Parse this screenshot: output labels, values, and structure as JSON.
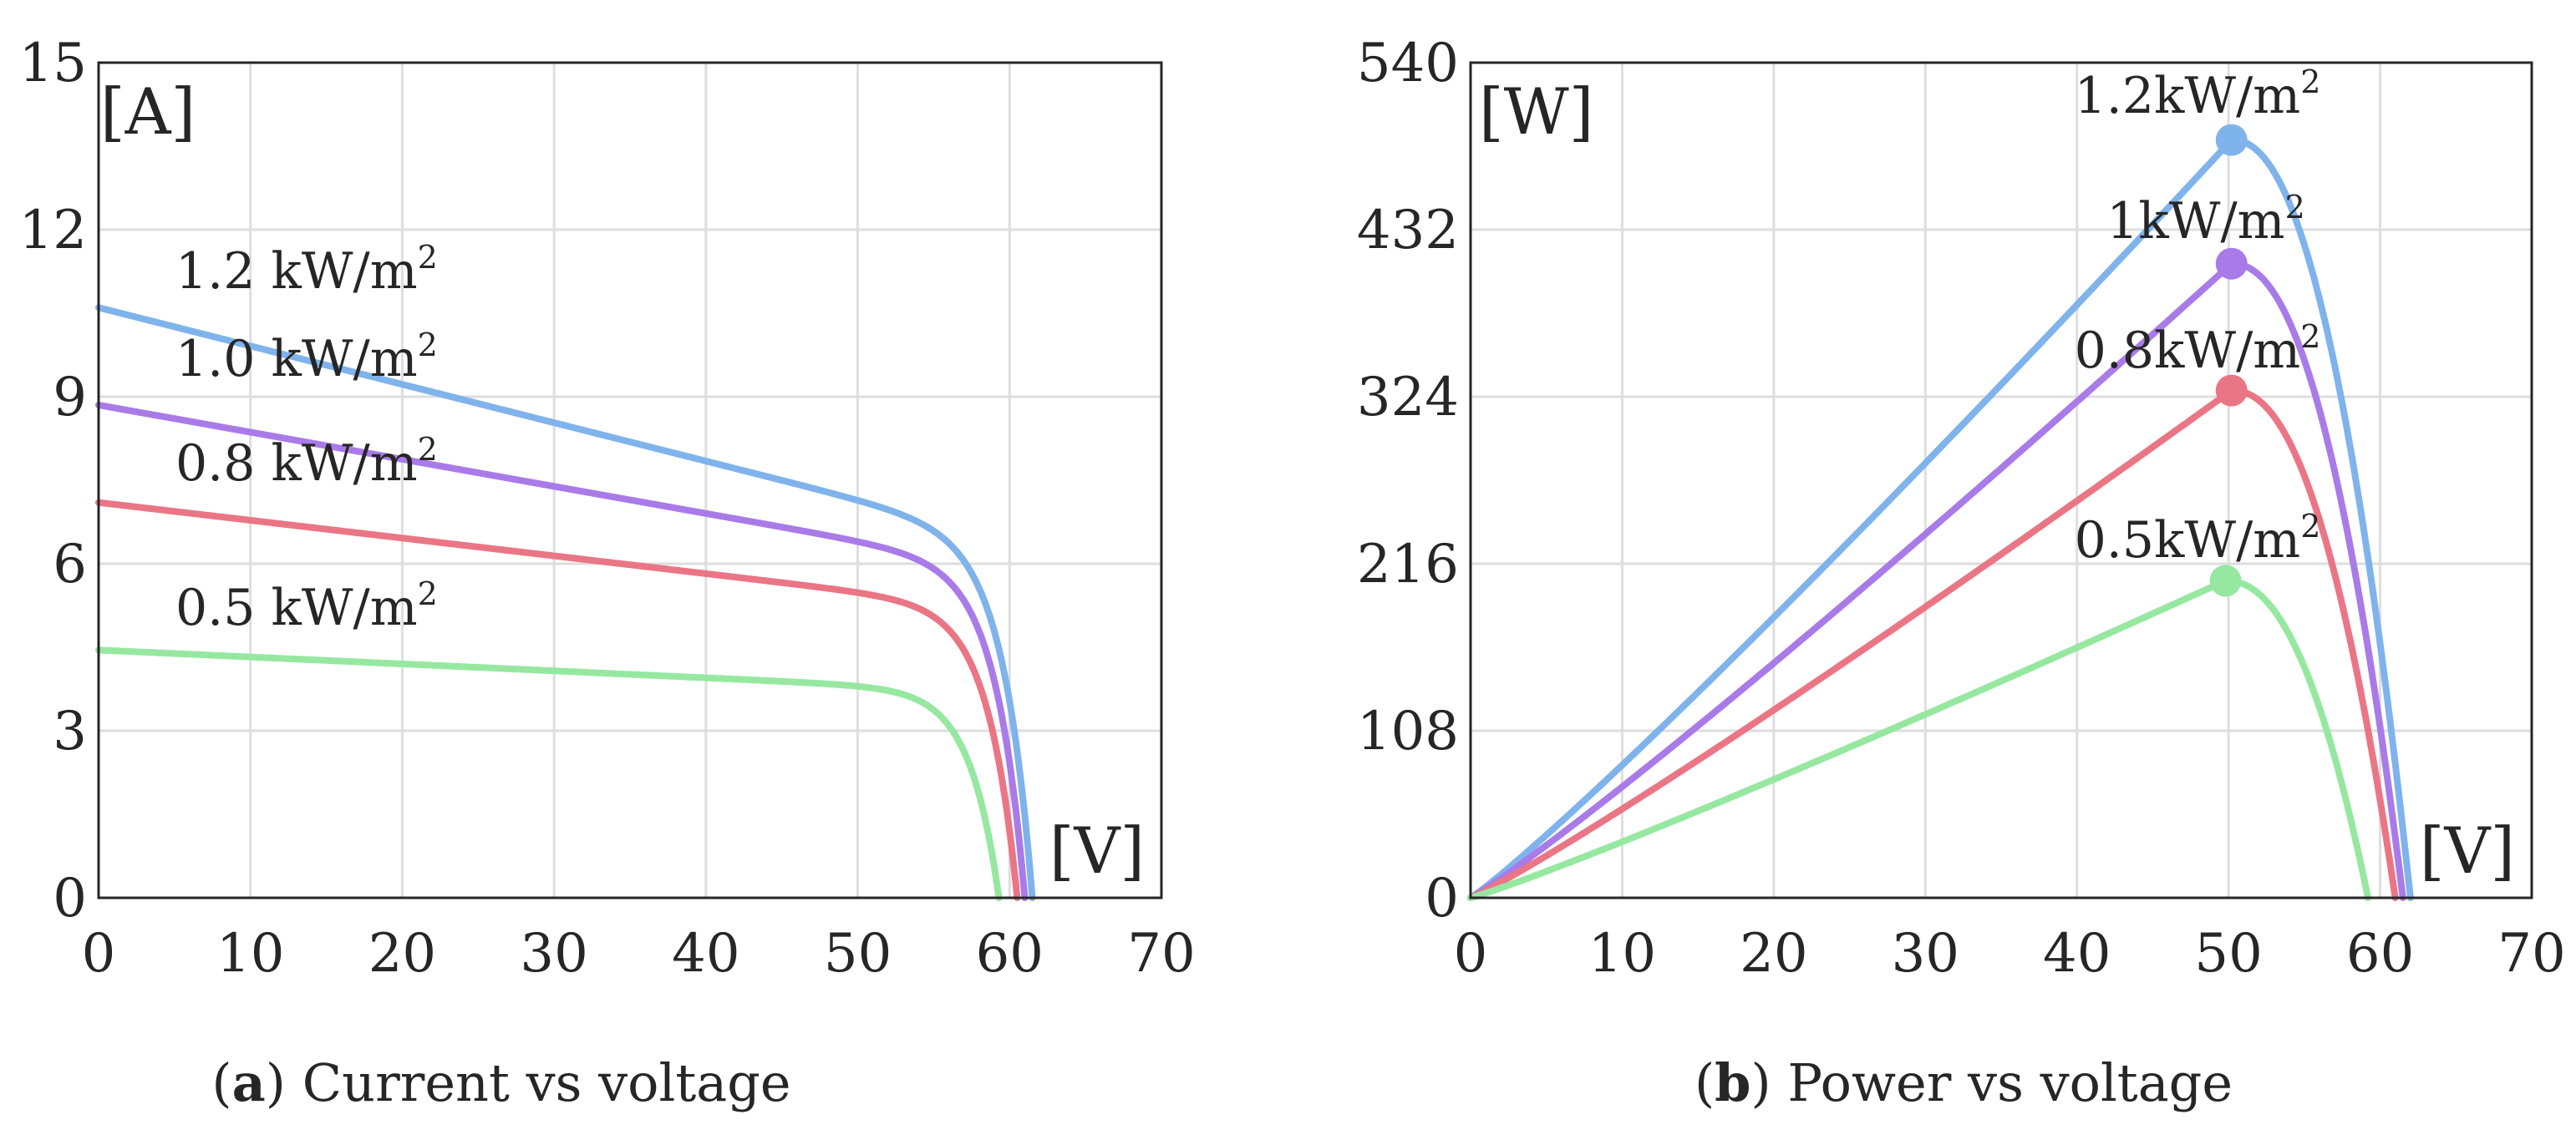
{
  "chart_data": [
    {
      "type": "line",
      "id": "iv",
      "title": "",
      "xlabel": "",
      "ylabel": "",
      "xlim": [
        0,
        70
      ],
      "ylim": [
        0,
        15
      ],
      "xticks": [
        0,
        10,
        20,
        30,
        40,
        50,
        60,
        70
      ],
      "yticks": [
        0,
        3,
        6,
        9,
        12,
        15
      ],
      "grid": true,
      "y_unit_label": "[A]",
      "x_unit_label": "[V]",
      "caption": {
        "label": "a",
        "open": "(",
        "close": ")",
        "text": " Current vs voltage"
      },
      "series": [
        {
          "name": "1.2 kW/m²",
          "label_base": "1.2 kW/m",
          "label_sup": "2",
          "color": "#7fb3ec",
          "isc": 10.6,
          "slope": 0.0065,
          "voc": 61.5
        },
        {
          "name": "1.0 kW/m²",
          "label_base": "1.0 kW/m",
          "label_sup": "2",
          "color": "#a97be8",
          "isc": 8.85,
          "slope": 0.0055,
          "voc": 61.0
        },
        {
          "name": "0.8 kW/m²",
          "label_base": "0.8 kW/m",
          "label_sup": "2",
          "color": "#ea7685",
          "isc": 7.1,
          "slope": 0.0045,
          "voc": 60.5
        },
        {
          "name": "0.5 kW/m²",
          "label_base": "0.5 kW/m",
          "label_sup": "2",
          "color": "#96e8a0",
          "isc": 4.45,
          "slope": 0.0028,
          "voc": 59.3
        }
      ]
    },
    {
      "type": "line",
      "id": "pv",
      "title": "",
      "xlabel": "",
      "ylabel": "",
      "xlim": [
        0,
        70
      ],
      "ylim": [
        0,
        540
      ],
      "xticks": [
        0,
        10,
        20,
        30,
        40,
        50,
        60,
        70
      ],
      "yticks": [
        0,
        108,
        216,
        324,
        432,
        540
      ],
      "grid": true,
      "y_unit_label": "[W]",
      "x_unit_label": "[V]",
      "caption": {
        "label": "b",
        "open": "(",
        "close": ")",
        "text": " Power vs voltage"
      },
      "series": [
        {
          "name": "1.2kW/m²",
          "label_base": "1.2kW/m",
          "label_sup": "2",
          "color": "#7fb3ec",
          "mpp": [
            50.2,
            490
          ]
        },
        {
          "name": "1kW/m²",
          "label_base": "1kW/m",
          "label_sup": "2",
          "color": "#a97be8",
          "mpp": [
            50.2,
            410
          ]
        },
        {
          "name": "0.8kW/m²",
          "label_base": "0.8kW/m",
          "label_sup": "2",
          "color": "#ea7685",
          "mpp": [
            50.2,
            328
          ]
        },
        {
          "name": "0.5kW/m²",
          "label_base": "0.5kW/m",
          "label_sup": "2",
          "color": "#96e8a0",
          "mpp": [
            49.8,
            205
          ]
        }
      ]
    }
  ]
}
